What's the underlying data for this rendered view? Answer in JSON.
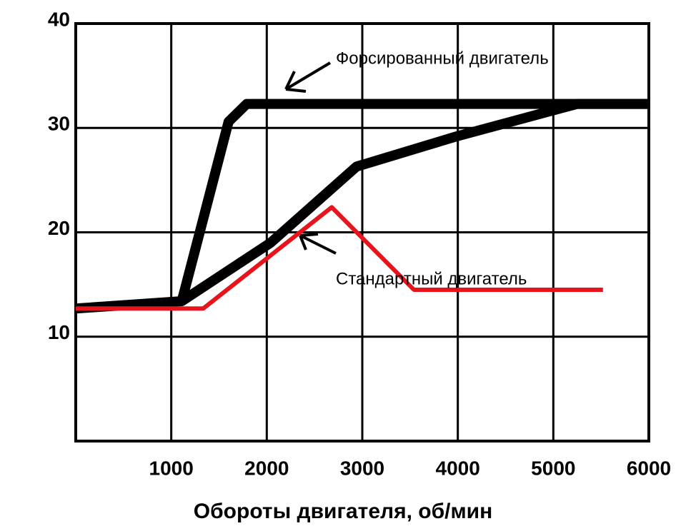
{
  "chart_data": {
    "type": "line",
    "x_label": "Обороты двигателя, об/мин",
    "annotations": [
      "Форсированный двигатель",
      "Стандартный двигатель"
    ],
    "series": [
      {
        "color": "#000000",
        "x": [
          0,
          1110,
          1600,
          1790,
          6000
        ],
        "values": [
          12.7,
          13.4,
          30.6,
          32.3,
          32.3
        ]
      },
      {
        "color": "#000000",
        "x": [
          1110,
          2040,
          2940,
          3990,
          5250,
          6000
        ],
        "values": [
          13.4,
          19,
          26.3,
          29.2,
          32.3,
          32.3
        ]
      },
      {
        "color": "#e8141c",
        "x": [
          0,
          1335,
          2680,
          3540,
          5520
        ],
        "values": [
          12.7,
          12.7,
          22.4,
          14.5,
          14.5
        ]
      }
    ],
    "xlim": [
      0,
      6000
    ],
    "xticks": [
      1000,
      2000,
      3000,
      4000,
      5000,
      6000
    ],
    "ylim": [
      0,
      40
    ],
    "yticks": [
      10,
      20,
      30,
      40
    ],
    "grid": true
  }
}
